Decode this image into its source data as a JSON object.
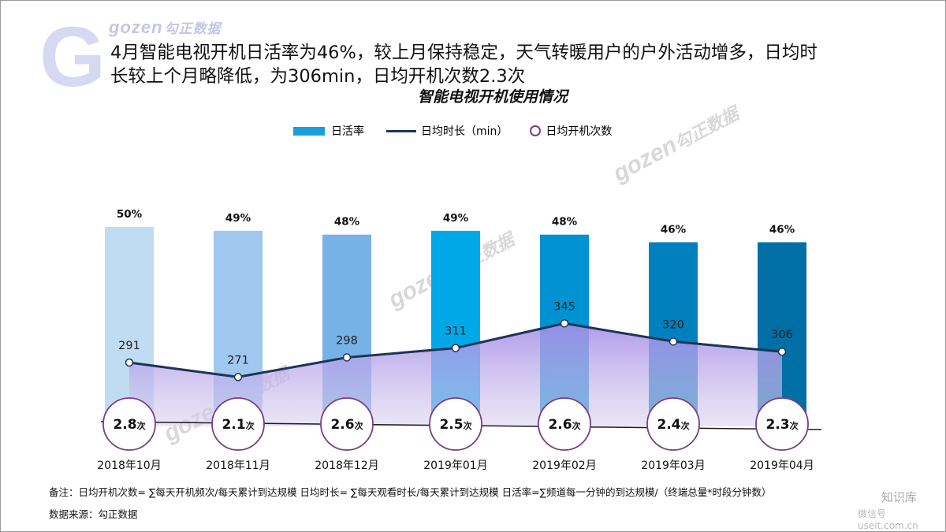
{
  "brand": {
    "big_letter": "G",
    "logo": "gozen",
    "logo_cn": "勾正数据"
  },
  "headline": {
    "line1": "4月智能电视开机日活率为46%，较上月保持稳定，天气转暖用户的户外活动增多，日均时",
    "line2": "长较上个月略降低，为306min，日均开机次数2.3次"
  },
  "chart_data": {
    "type": "bar",
    "title": "智能电视开机使用情况",
    "legend_position": "top-center",
    "categories": [
      "2018年10月",
      "2018年11月",
      "2018年12月",
      "2019年01月",
      "2019年02月",
      "2019年03月",
      "2019年04月"
    ],
    "series": [
      {
        "name": "日活率",
        "type": "bar",
        "values": [
          50,
          49,
          48,
          49,
          48,
          46,
          46
        ],
        "labels": [
          "50%",
          "49%",
          "48%",
          "49%",
          "48%",
          "46%",
          "46%"
        ],
        "colors": [
          "#bfdcf2",
          "#a0c8ef",
          "#77b2e7",
          "#00a8e8",
          "#0092d2",
          "#0080bd",
          "#006fa6"
        ]
      },
      {
        "name": "日均时长（min）",
        "type": "line",
        "values": [
          291,
          271,
          298,
          311,
          345,
          320,
          306
        ],
        "color": "#1c3556"
      },
      {
        "name": "日均开机次数",
        "type": "circle",
        "values": [
          2.8,
          2.1,
          2.6,
          2.5,
          2.6,
          2.4,
          2.3
        ],
        "unit": "次",
        "color": "#7a3d85"
      }
    ]
  },
  "footnote": "备注：日均开机次数= ∑每天开机频次/每天累计到达规模    日均时长= ∑每天观看时长/每天累计到达规模    日活率=∑频道每一分钟的到达规模/（终端总量*时段分钟数）",
  "source": "数据来源：勾正数据",
  "corner": {
    "line1": "知识库",
    "line2": "微信号 useit.com.cn"
  }
}
